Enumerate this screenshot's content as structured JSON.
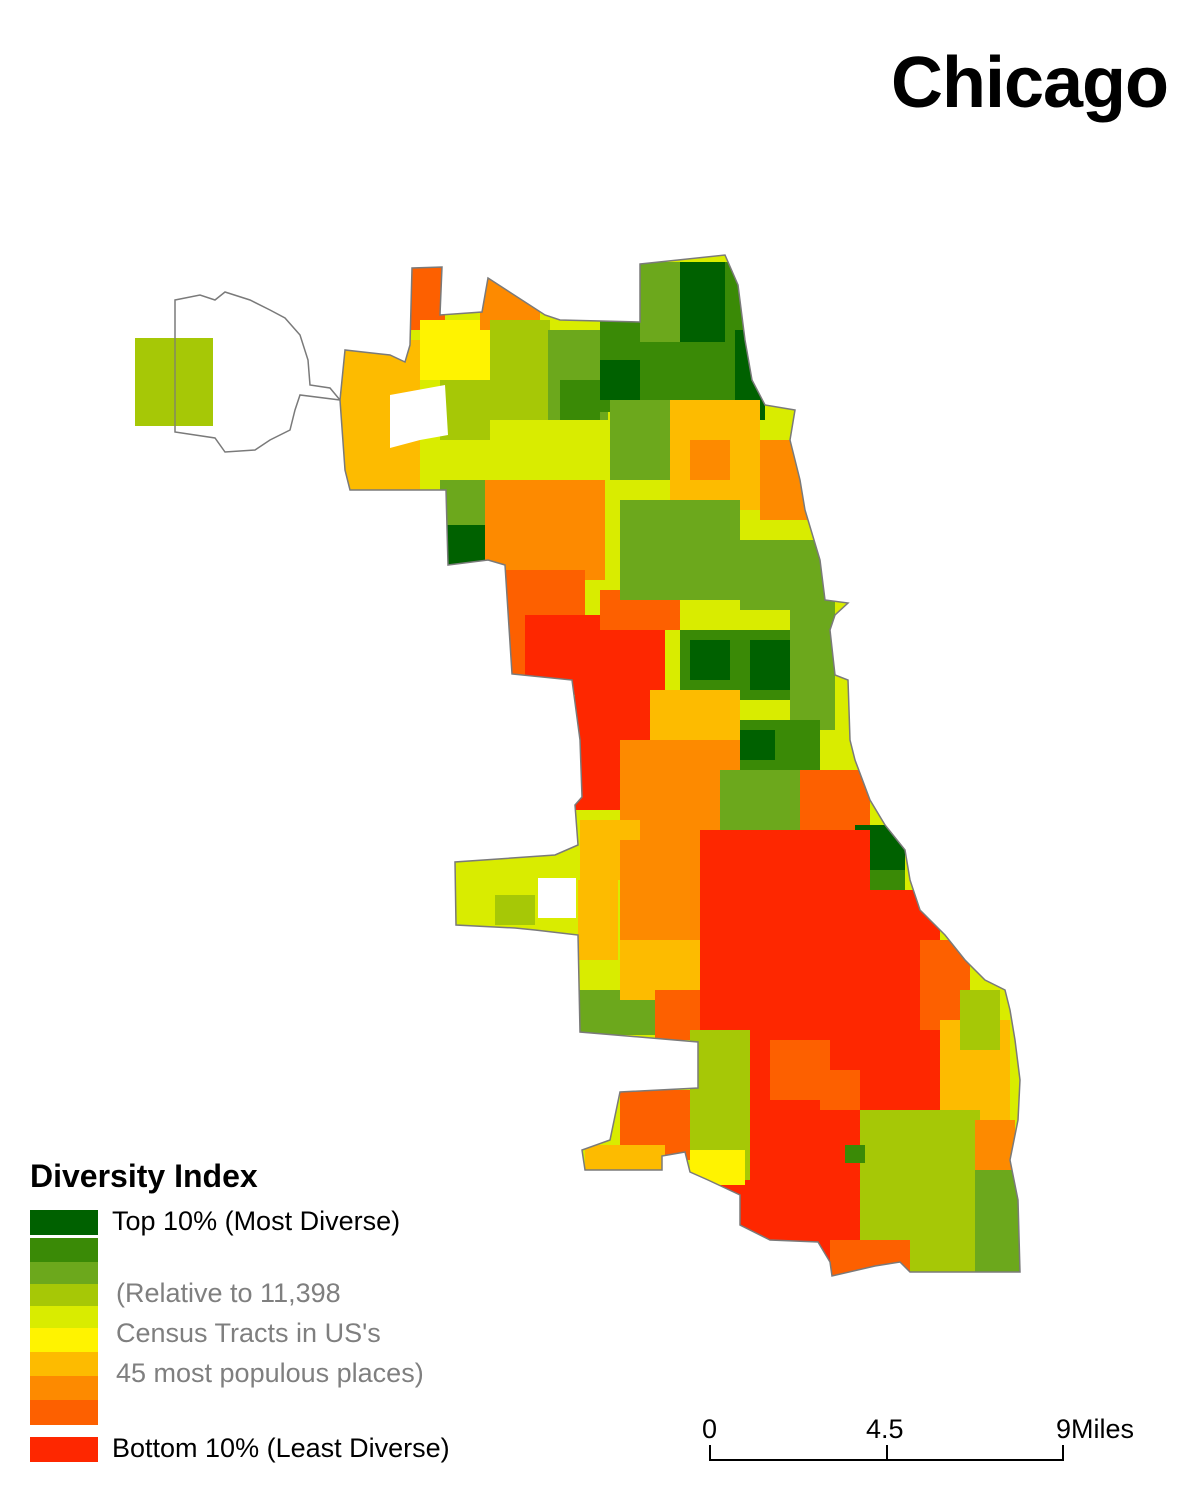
{
  "title": "Chicago",
  "legend": {
    "title": "Diversity Index",
    "top_label": "Top 10% (Most Diverse)",
    "bottom_label": "Bottom 10% (Least Diverse)",
    "note_lines": [
      "(Relative to 11,398",
      "Census Tracts in US's",
      "45 most populous places)"
    ],
    "colors": [
      "#006100",
      "#3a8a06",
      "#6ca81c",
      "#a6c806",
      "#d9ec00",
      "#fff300",
      "#fdbb00",
      "#fd8a00",
      "#fd6000",
      "#fe2700"
    ]
  },
  "scale_bar": {
    "labels": [
      "0",
      "4.5",
      "9Miles"
    ]
  }
}
